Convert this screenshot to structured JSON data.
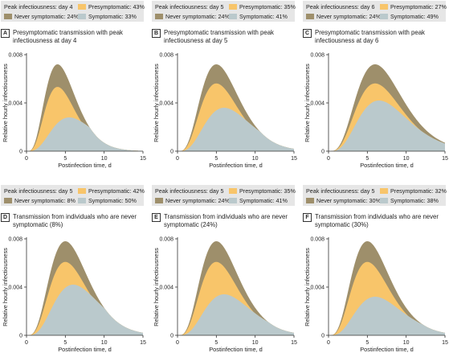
{
  "colors": {
    "presymptomatic": "#f8c56a",
    "never_symptomatic": "#9e8f6b",
    "symptomatic": "#bac9cc",
    "legend_bg": "#e6e6e6"
  },
  "chart_data": [
    {
      "letter": "A",
      "title": "Presymptomatic transmission with peak infectiousness at day 4",
      "type": "area",
      "legend": {
        "peak": "Peak infectiousness: day 4",
        "presymptomatic": "Presymptomatic: 43%",
        "never_symptomatic": "Never symptomatic: 24%",
        "symptomatic": "Symptomatic: 33%"
      },
      "xlabel": "Postinfection time, d",
      "ylabel": "Relative hourly infectiousness",
      "xticks": [
        "0",
        "5",
        "10",
        "15"
      ],
      "yticks": [
        "0",
        "0.004",
        "0.008"
      ],
      "xlim": [
        0,
        15
      ],
      "ylim": [
        0,
        0.008
      ],
      "total": {
        "peak_day": 4.0,
        "peak_value": 0.0072
      },
      "symptomatic": {
        "peak_day": 5.5,
        "peak_value": 0.0028
      }
    },
    {
      "letter": "B",
      "title": "Presymptomatic transmission with peak infectiousness at day 5",
      "type": "area",
      "legend": {
        "peak": "Peak infectiousness: day 5",
        "presymptomatic": "Presymptomatic: 35%",
        "never_symptomatic": "Never symptomatic: 24%",
        "symptomatic": "Symptomatic: 41%"
      },
      "xlabel": "Postinfection time, d",
      "ylabel": "Relative hourly infectiousness",
      "xticks": [
        "0",
        "5",
        "10",
        "15"
      ],
      "yticks": [
        "0",
        "0.004",
        "0.008"
      ],
      "xlim": [
        0,
        15
      ],
      "ylim": [
        0,
        0.008
      ],
      "total": {
        "peak_day": 5.0,
        "peak_value": 0.0072
      },
      "symptomatic": {
        "peak_day": 6.0,
        "peak_value": 0.0036
      }
    },
    {
      "letter": "C",
      "title": "Presymptomatic transmission with peak infectiousness at day 6",
      "type": "area",
      "legend": {
        "peak": "Peak infectiousness: day 6",
        "presymptomatic": "Presymptomatic: 27%",
        "never_symptomatic": "Never symptomatic: 24%",
        "symptomatic": "Symptomatic: 49%"
      },
      "xlabel": "Postinfection time, d",
      "ylabel": "Relative hourly infectiousness",
      "xticks": [
        "0",
        "5",
        "10",
        "15"
      ],
      "yticks": [
        "0",
        "0.004",
        "0.008"
      ],
      "xlim": [
        0,
        15
      ],
      "ylim": [
        0,
        0.008
      ],
      "total": {
        "peak_day": 6.0,
        "peak_value": 0.0072
      },
      "symptomatic": {
        "peak_day": 6.5,
        "peak_value": 0.0042
      }
    },
    {
      "letter": "D",
      "title": "Transmission from individuals who are never symptomatic (8%)",
      "type": "area",
      "legend": {
        "peak": "Peak infectiousness: day 5",
        "presymptomatic": "Presymptomatic: 42%",
        "never_symptomatic": "Never symptomatic: 8%",
        "symptomatic": "Symptomatic: 50%"
      },
      "xlabel": "Postinfection time, d",
      "ylabel": "Relative hourly infectiousness",
      "xticks": [
        "0",
        "5",
        "10",
        "15"
      ],
      "yticks": [
        "0",
        "0.004",
        "0.008"
      ],
      "xlim": [
        0,
        15
      ],
      "ylim": [
        0,
        0.008
      ],
      "total": {
        "peak_day": 5.0,
        "peak_value": 0.0078
      },
      "symptomatic": {
        "peak_day": 6.0,
        "peak_value": 0.0042
      }
    },
    {
      "letter": "E",
      "title": "Transmission from individuals who are never symptomatic (24%)",
      "type": "area",
      "legend": {
        "peak": "Peak infectiousness: day 5",
        "presymptomatic": "Presymptomatic: 35%",
        "never_symptomatic": "Never symptomatic: 24%",
        "symptomatic": "Symptomatic: 41%"
      },
      "xlabel": "Postinfection time, d",
      "ylabel": "Relative hourly infectiousness",
      "xticks": [
        "0",
        "5",
        "10",
        "15"
      ],
      "yticks": [
        "0",
        "0.004",
        "0.008"
      ],
      "xlim": [
        0,
        15
      ],
      "ylim": [
        0,
        0.008
      ],
      "total": {
        "peak_day": 5.0,
        "peak_value": 0.0078
      },
      "symptomatic": {
        "peak_day": 6.0,
        "peak_value": 0.0034
      }
    },
    {
      "letter": "F",
      "title": "Transmission from individuals who are never symptomatic (30%)",
      "type": "area",
      "legend": {
        "peak": "Peak infectiousness: day 5",
        "presymptomatic": "Presymptomatic: 32%",
        "never_symptomatic": "Never symptomatic: 30%",
        "symptomatic": "Symptomatic: 38%"
      },
      "xlabel": "Postinfection time, d",
      "ylabel": "Relative hourly infectiousness",
      "xticks": [
        "0",
        "5",
        "10",
        "15"
      ],
      "yticks": [
        "0",
        "0.004",
        "0.008"
      ],
      "xlim": [
        0,
        15
      ],
      "ylim": [
        0,
        0.008
      ],
      "total": {
        "peak_day": 5.0,
        "peak_value": 0.0078
      },
      "symptomatic": {
        "peak_day": 6.0,
        "peak_value": 0.0032
      }
    }
  ]
}
